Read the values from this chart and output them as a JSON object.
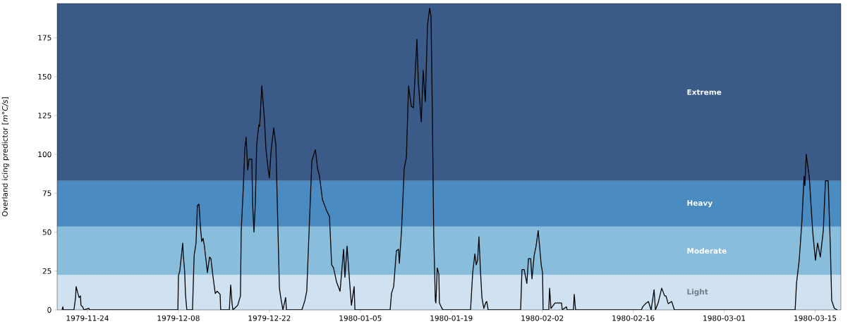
{
  "chart_data": {
    "type": "line",
    "ylabel": "Overland icing predictor [*m°C/s*]",
    "color": "#000000",
    "x": [
      "1979-11-20T02:00",
      "1979-11-20T05:00",
      "1979-11-20T07:00",
      "1979-11-21T22:00",
      "1979-11-22T04:00",
      "1979-11-22T06:00",
      "1979-11-22T12:00",
      "1979-11-22T17:00",
      "1979-11-22T22:00",
      "1979-11-23T00:00",
      "1979-11-23T06:00",
      "1979-11-23T11:00",
      "1979-11-24T05:00",
      "1979-11-24T08:00",
      "1979-12-07T22:00",
      "1979-12-08T00:00",
      "1979-12-08T05:00",
      "1979-12-08T11:00",
      "1979-12-08T16:00",
      "1979-12-08T18:00",
      "1979-12-08T23:00",
      "1979-12-09T02:00",
      "1979-12-09T07:00",
      "1979-12-10T04:00",
      "1979-12-10T10:00",
      "1979-12-10T17:00",
      "1979-12-10T22:00",
      "1979-12-11T04:00",
      "1979-12-11T09:00",
      "1979-12-11T14:00",
      "1979-12-11T19:00",
      "1979-12-12T00:00",
      "1979-12-12T11:00",
      "1979-12-12T19:00",
      "1979-12-13T00:00",
      "1979-12-13T08:00",
      "1979-12-13T16:00",
      "1979-12-13T23:00",
      "1979-12-14T10:00",
      "1979-12-14T12:00",
      "1979-12-15T20:00",
      "1979-12-16T01:00",
      "1979-12-16T06:00",
      "1979-12-16T09:00",
      "1979-12-17T03:00",
      "1979-12-17T13:00",
      "1979-12-17T16:00",
      "1979-12-18T00:00",
      "1979-12-18T05:00",
      "1979-12-18T10:00",
      "1979-12-18T16:00",
      "1979-12-18T21:00",
      "1979-12-19T07:00",
      "1979-12-19T10:00",
      "1979-12-19T15:00",
      "1979-12-19T20:00",
      "1979-12-20T01:00",
      "1979-12-20T09:00",
      "1979-12-20T12:00",
      "1979-12-20T20:00",
      "1979-12-21T06:00",
      "1979-12-21T11:00",
      "1979-12-21T19:00",
      "1979-12-22T00:00",
      "1979-12-22T06:00",
      "1979-12-22T16:00",
      "1979-12-23T00:00",
      "1979-12-23T05:00",
      "1979-12-23T13:00",
      "1979-12-23T18:00",
      "1979-12-24T02:00",
      "1979-12-24T12:00",
      "1979-12-24T15:00",
      "1979-12-27T00:00",
      "1979-12-27T11:00",
      "1979-12-27T18:00",
      "1979-12-28T02:00",
      "1979-12-28T13:00",
      "1979-12-29T02:00",
      "1979-12-29T10:00",
      "1979-12-29T17:00",
      "1979-12-30T04:00",
      "1979-12-30T19:00",
      "1979-12-31T06:00",
      "1979-12-31T14:00",
      "1979-12-31T21:00",
      "1980-01-01T08:00",
      "1980-01-01T21:00",
      "1980-01-02T10:00",
      "1980-01-02T15:00",
      "1980-01-02T23:00",
      "1980-01-03T07:00",
      "1980-01-03T15:00",
      "1980-01-04T01:00",
      "1980-01-04T04:00",
      "1980-01-09T14:00",
      "1980-01-09T19:00",
      "1980-01-10T03:00",
      "1980-01-10T13:00",
      "1980-01-10T21:00",
      "1980-01-11T00:00",
      "1980-01-11T08:00",
      "1980-01-11T18:00",
      "1980-01-12T02:00",
      "1980-01-12T10:00",
      "1980-01-12T20:00",
      "1980-01-13T04:00",
      "1980-01-13T09:00",
      "1980-01-13T17:00",
      "1980-01-13T22:00",
      "1980-01-14T09:00",
      "1980-01-14T16:00",
      "1980-01-15T00:00",
      "1980-01-15T08:00",
      "1980-01-15T16:00",
      "1980-01-15T21:00",
      "1980-01-16T02:00",
      "1980-01-16T07:00",
      "1980-01-16T13:00",
      "1980-01-16T15:00",
      "1980-01-16T20:00",
      "1980-01-17T02:00",
      "1980-01-17T04:00",
      "1980-01-17T12:00",
      "1980-01-17T17:00",
      "1980-01-21T23:00",
      "1980-01-22T07:00",
      "1980-01-22T15:00",
      "1980-01-22T20:00",
      "1980-01-23T01:00",
      "1980-01-23T06:00",
      "1980-01-23T12:00",
      "1980-01-23T17:00",
      "1980-01-24T00:00",
      "1980-01-24T08:00",
      "1980-01-24T11:00",
      "1980-01-24T16:00",
      "1980-01-29T16:00",
      "1980-01-29T21:00",
      "1980-01-30T05:00",
      "1980-01-30T15:00",
      "1980-01-30T21:00",
      "1980-01-31T05:00",
      "1980-01-31T10:00",
      "1980-01-31T18:00",
      "1980-02-01T01:00",
      "1980-02-01T09:00",
      "1980-02-01T14:00",
      "1980-02-01T20:00",
      "1980-02-02T01:00",
      "1980-02-02T03:00",
      "1980-02-03T00:00",
      "1980-02-03T03:00",
      "1980-02-03T08:00",
      "1980-02-03T23:00",
      "1980-02-04T23:00",
      "1980-02-05T02:00",
      "1980-02-05T17:00",
      "1980-02-05T20:00",
      "1980-02-06T19:00",
      "1980-02-06T22:00",
      "1980-02-07T03:00",
      "1980-02-17T06:00",
      "1980-02-17T11:00",
      "1980-02-17T21:00",
      "1980-02-18T08:00",
      "1980-02-18T18:00",
      "1980-02-19T05:00",
      "1980-02-19T10:00",
      "1980-02-19T20:00",
      "1980-02-20T09:00",
      "1980-02-20T20:00",
      "1980-02-21T01:00",
      "1980-02-21T09:00",
      "1980-02-21T22:00",
      "1980-02-22T08:00",
      "1980-03-11T22:00",
      "1980-03-12T03:00",
      "1980-03-12T13:00",
      "1980-03-12T23:00",
      "1980-03-13T07:00",
      "1980-03-13T10:00",
      "1980-03-13T15:00",
      "1980-03-13T21:00",
      "1980-03-14T02:00",
      "1980-03-14T15:00",
      "1980-03-15T01:00",
      "1980-03-15T09:00",
      "1980-03-15T19:00",
      "1980-03-16T06:00",
      "1980-03-16T14:00",
      "1980-03-17T00:00",
      "1980-03-17T08:00",
      "1980-03-17T13:00",
      "1980-03-17T23:00",
      "1980-03-18T10:00"
    ],
    "values": [
      0,
      2,
      0,
      0,
      8,
      15,
      11,
      8,
      9,
      3,
      2,
      0,
      1,
      0,
      0,
      22,
      25,
      35,
      43,
      35,
      25,
      10,
      0,
      0,
      35,
      43,
      67,
      68,
      54,
      44,
      46,
      41,
      24,
      34,
      33,
      21,
      10.6,
      12,
      10,
      0,
      0,
      16,
      4.5,
      0,
      3,
      9,
      51,
      80,
      103,
      111,
      90,
      97,
      97,
      68,
      50,
      68,
      106,
      119,
      118,
      144,
      122,
      104,
      91,
      85,
      102,
      117,
      106,
      70,
      14,
      8,
      0,
      8,
      0,
      0,
      6,
      12,
      48,
      96,
      103,
      91,
      86,
      71,
      64,
      60,
      29,
      27,
      18,
      12,
      39,
      21,
      41,
      21,
      3,
      15,
      0,
      0,
      10.6,
      15,
      38,
      39,
      30,
      51,
      91,
      98,
      144,
      131,
      130,
      147,
      174,
      147,
      121,
      154,
      134,
      183,
      194,
      189,
      126,
      48,
      6,
      4.5,
      27,
      23,
      4.5,
      1.5,
      0,
      0,
      24,
      36,
      29,
      32,
      47,
      24,
      8,
      1,
      5,
      5.4,
      0,
      0,
      26,
      26,
      17,
      33,
      33,
      20,
      35,
      41,
      51,
      41,
      29,
      24,
      0,
      0,
      14,
      1,
      4.5,
      4.5,
      0,
      2,
      0,
      0,
      10,
      0,
      0,
      2,
      4,
      5.4,
      0,
      13,
      0,
      4.5,
      14,
      9,
      9,
      4,
      5.4,
      0,
      0,
      17,
      32,
      57,
      86,
      80,
      100,
      92,
      86,
      50,
      32,
      43,
      34,
      51,
      83,
      83,
      41,
      6,
      1,
      0
    ],
    "xlim": [
      "1979-11-19T08:00",
      "1980-03-18T23:00"
    ],
    "ylim": [
      0,
      197
    ],
    "xticks": [
      "1979-11-24",
      "1979-12-08",
      "1979-12-22",
      "1980-01-05",
      "1980-01-19",
      "1980-02-02",
      "1980-02-16",
      "1980-03-01",
      "1980-03-15"
    ],
    "yticks": [
      0,
      25,
      50,
      75,
      100,
      125,
      150,
      175
    ],
    "bands": [
      {
        "axis": "y",
        "from": 0,
        "to": 22.5,
        "label": "Light",
        "color": "#d0e1f2"
      },
      {
        "axis": "y",
        "from": 22.5,
        "to": 53.5,
        "label": "Moderate",
        "color": "#88bedc"
      },
      {
        "axis": "y",
        "from": 53.5,
        "to": 83,
        "label": "Heavy",
        "color": "#4a8bc2"
      },
      {
        "axis": "y",
        "from": 83,
        "to": 197,
        "label": "Extreme",
        "color": "#3a5a88"
      }
    ]
  }
}
